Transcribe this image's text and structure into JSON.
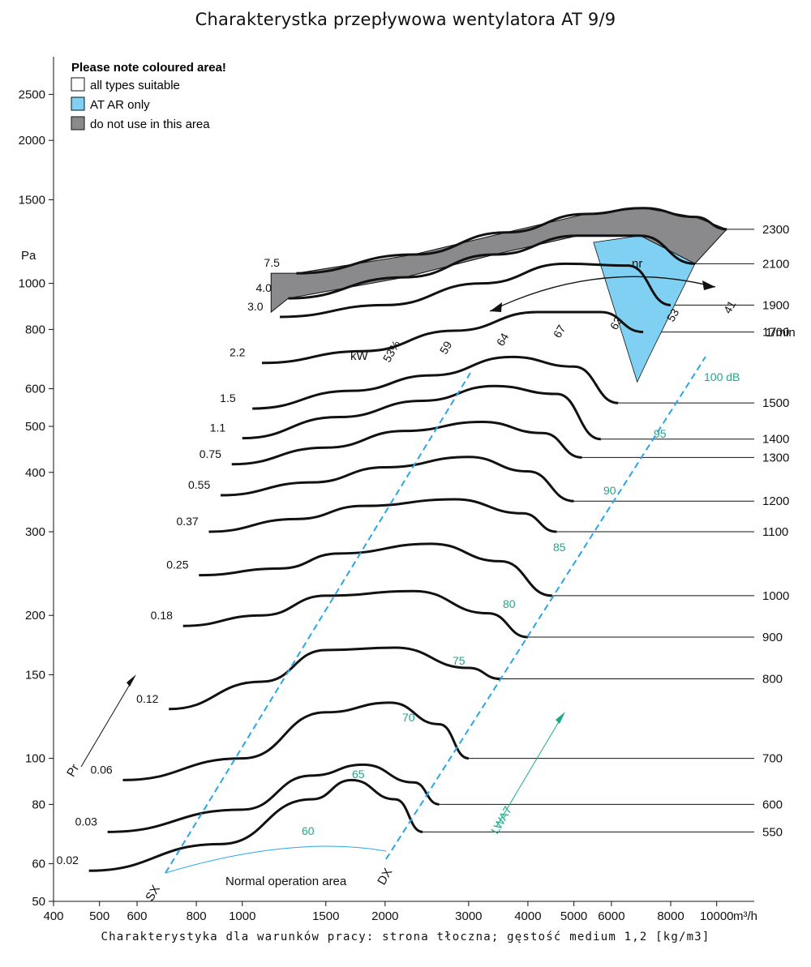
{
  "title": "Charakterystka przepływowa wentylatora AT 9/9",
  "caption": "Charakterystyka dla warunków pracy: strona tłoczna; gęstość medium 1,2 [kg/m3]",
  "colors": {
    "curve": "#111111",
    "sound": "#1aa98a",
    "blue_zone": "#7fd0f2",
    "gray_zone": "#8a8a8c",
    "dash": "#2aa5e6",
    "grid": "#222222"
  },
  "legend": {
    "title": "Please note coloured area!",
    "items": [
      {
        "label": "all types suitable",
        "color": "#ffffff"
      },
      {
        "label": "AT AR only",
        "color": "#7fd0f2"
      },
      {
        "label": "do not use in this area",
        "color": "#8a8a8c"
      }
    ]
  },
  "chart_data": {
    "type": "line",
    "x_axis": {
      "scale": "log",
      "unit": "m³/h",
      "ticks": [
        400,
        500,
        600,
        800,
        1000,
        1500,
        2000,
        3000,
        4000,
        5000,
        6000,
        8000,
        10000
      ],
      "range": [
        400,
        12000
      ]
    },
    "y_axis": {
      "scale": "log",
      "unit": "Pa",
      "ticks": [
        50,
        60,
        80,
        100,
        150,
        200,
        300,
        400,
        500,
        600,
        800,
        1000,
        1500,
        2000,
        2500
      ],
      "range": [
        50,
        3000
      ]
    },
    "speed_unit": "1/min",
    "speed_curves": [
      {
        "rpm": 550,
        "points": [
          [
            475,
            58
          ],
          [
            900,
            66
          ],
          [
            1400,
            82
          ],
          [
            1700,
            90
          ],
          [
            2100,
            82
          ],
          [
            2400,
            70
          ]
        ]
      },
      {
        "rpm": 600,
        "points": [
          [
            520,
            70
          ],
          [
            1000,
            78
          ],
          [
            1400,
            92
          ],
          [
            1800,
            97
          ],
          [
            2300,
            89
          ],
          [
            2600,
            80
          ]
        ]
      },
      {
        "rpm": 700,
        "points": [
          [
            560,
            90
          ],
          [
            1000,
            100
          ],
          [
            1500,
            125
          ],
          [
            2050,
            131
          ],
          [
            2600,
            118
          ],
          [
            3000,
            100
          ]
        ]
      },
      {
        "rpm": 800,
        "points": [
          [
            700,
            127
          ],
          [
            1100,
            145
          ],
          [
            1500,
            169
          ],
          [
            2100,
            171
          ],
          [
            3000,
            155
          ],
          [
            3500,
            147
          ]
        ]
      },
      {
        "rpm": 900,
        "points": [
          [
            750,
            190
          ],
          [
            1100,
            200
          ],
          [
            1500,
            220
          ],
          [
            2300,
            225
          ],
          [
            3300,
            202
          ],
          [
            4000,
            180
          ]
        ]
      },
      {
        "rpm": 1000,
        "points": [
          [
            810,
            243
          ],
          [
            1200,
            251
          ],
          [
            1600,
            270
          ],
          [
            2500,
            283
          ],
          [
            3500,
            260
          ],
          [
            4500,
            220
          ]
        ]
      },
      {
        "rpm": 1100,
        "points": [
          [
            850,
            300
          ],
          [
            1300,
            319
          ],
          [
            1800,
            340
          ],
          [
            2800,
            351
          ],
          [
            3900,
            328
          ],
          [
            4600,
            300
          ]
        ]
      },
      {
        "rpm": 1200,
        "points": [
          [
            900,
            358
          ],
          [
            1400,
            381
          ],
          [
            2000,
            410
          ],
          [
            3000,
            431
          ],
          [
            4000,
            402
          ],
          [
            5000,
            348
          ]
        ]
      },
      {
        "rpm": 1300,
        "points": [
          [
            950,
            416
          ],
          [
            1500,
            451
          ],
          [
            2200,
            489
          ],
          [
            3200,
            511
          ],
          [
            4300,
            484
          ],
          [
            5200,
            430
          ]
        ]
      },
      {
        "rpm": 1400,
        "points": [
          [
            1000,
            472
          ],
          [
            1600,
            523
          ],
          [
            2400,
            566
          ],
          [
            3400,
            608
          ],
          [
            4600,
            585
          ],
          [
            5700,
            470
          ]
        ]
      },
      {
        "rpm": 1500,
        "points": [
          [
            1050,
            545
          ],
          [
            1700,
            594
          ],
          [
            2500,
            640
          ],
          [
            3700,
            700
          ],
          [
            5000,
            668
          ],
          [
            6200,
            560
          ]
        ]
      },
      {
        "rpm": 1700,
        "points": [
          [
            1100,
            680
          ],
          [
            1800,
            720
          ],
          [
            2800,
            795
          ],
          [
            4200,
            870
          ],
          [
            5700,
            870
          ],
          [
            7000,
            790
          ]
        ]
      },
      {
        "rpm": 1900,
        "points": [
          [
            1200,
            850
          ],
          [
            2000,
            900
          ],
          [
            3200,
            1000
          ],
          [
            4800,
            1100
          ],
          [
            6500,
            1090
          ],
          [
            8000,
            900
          ]
        ]
      },
      {
        "rpm": 2100,
        "points": [
          [
            1250,
            930
          ],
          [
            2200,
            1030
          ],
          [
            3400,
            1150
          ],
          [
            5100,
            1260
          ],
          [
            6900,
            1260
          ],
          [
            9000,
            1100
          ]
        ]
      },
      {
        "rpm": 2300,
        "points": [
          [
            1300,
            1050
          ],
          [
            2300,
            1150
          ],
          [
            3600,
            1280
          ],
          [
            5300,
            1400
          ],
          [
            7000,
            1440
          ],
          [
            9000,
            1380
          ],
          [
            10500,
            1300
          ]
        ]
      }
    ],
    "speed_labels": [
      550,
      600,
      700,
      800,
      900,
      1000,
      1100,
      1200,
      1300,
      1400,
      1500,
      1700,
      1900,
      2100,
      2300
    ],
    "power_labels": [
      "0.02",
      "0.03",
      "0.06",
      "0.12",
      "0.18",
      "0.25",
      "0.37",
      "0.55",
      "0.75",
      "1.1",
      "1.5",
      "2.2",
      "3.0",
      "4.0",
      "7.5"
    ],
    "power_unit": "kW",
    "efficiency_labels": [
      "53%",
      "59",
      "64",
      "67",
      "63",
      "53",
      "41"
    ],
    "efficiency_symbol": "ηr",
    "sound_unit": "dB",
    "sound_labels": [
      "60",
      "65",
      "70",
      "75",
      "80",
      "85",
      "90",
      "95",
      "100 dB"
    ],
    "sound_symbol": "LWA7",
    "pressure_symbol": "Pr",
    "operation_labels": {
      "sx": "SX",
      "dx": "DX",
      "area": "Normal operation area"
    },
    "zones": {
      "gray": "do not use in this area",
      "blue": "AT AR only"
    }
  }
}
